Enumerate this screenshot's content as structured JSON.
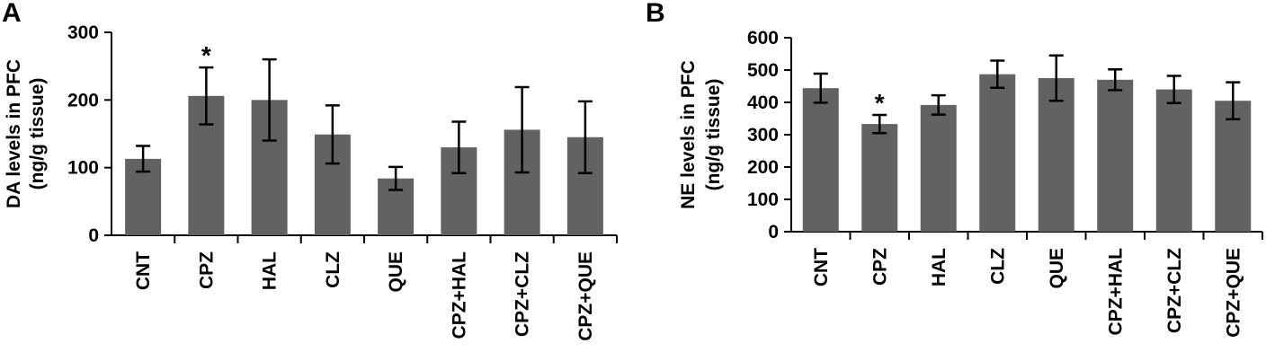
{
  "colors": {
    "bar": "#626262",
    "axis": "#000000",
    "errorbar": "#000000"
  },
  "chart_data": [
    {
      "type": "bar",
      "panel": "A",
      "categories": [
        "CNT",
        "CPZ",
        "HAL",
        "CLZ",
        "QUE",
        "CPZ+HAL",
        "CPZ+CLZ",
        "CPZ+QUE"
      ],
      "values": [
        113,
        206,
        200,
        149,
        84,
        130,
        156,
        145
      ],
      "errors": [
        19,
        42,
        60,
        43,
        17,
        38,
        63,
        53
      ],
      "significance": [
        "",
        "*",
        "",
        "",
        "",
        "",
        "",
        ""
      ],
      "ylabel": "DA levels in PFC",
      "ylabel_unit": "(ng/g tissue)",
      "ylim": [
        0,
        300
      ],
      "yticks": [
        0,
        100,
        200,
        300
      ],
      "grid": false
    },
    {
      "type": "bar",
      "panel": "B",
      "categories": [
        "CNT",
        "CPZ",
        "HAL",
        "CLZ",
        "QUE",
        "CPZ+HAL",
        "CPZ+CLZ",
        "CPZ+QUE"
      ],
      "values": [
        444,
        333,
        392,
        487,
        475,
        470,
        440,
        405
      ],
      "errors": [
        45,
        28,
        30,
        42,
        70,
        32,
        42,
        57
      ],
      "significance": [
        "",
        "*",
        "",
        "",
        "",
        "",
        "",
        ""
      ],
      "ylabel": "NE levels in PFC",
      "ylabel_unit": "(ng/g tissue)",
      "ylim": [
        0,
        600
      ],
      "yticks": [
        0,
        100,
        200,
        300,
        400,
        500,
        600
      ],
      "grid": false
    }
  ]
}
